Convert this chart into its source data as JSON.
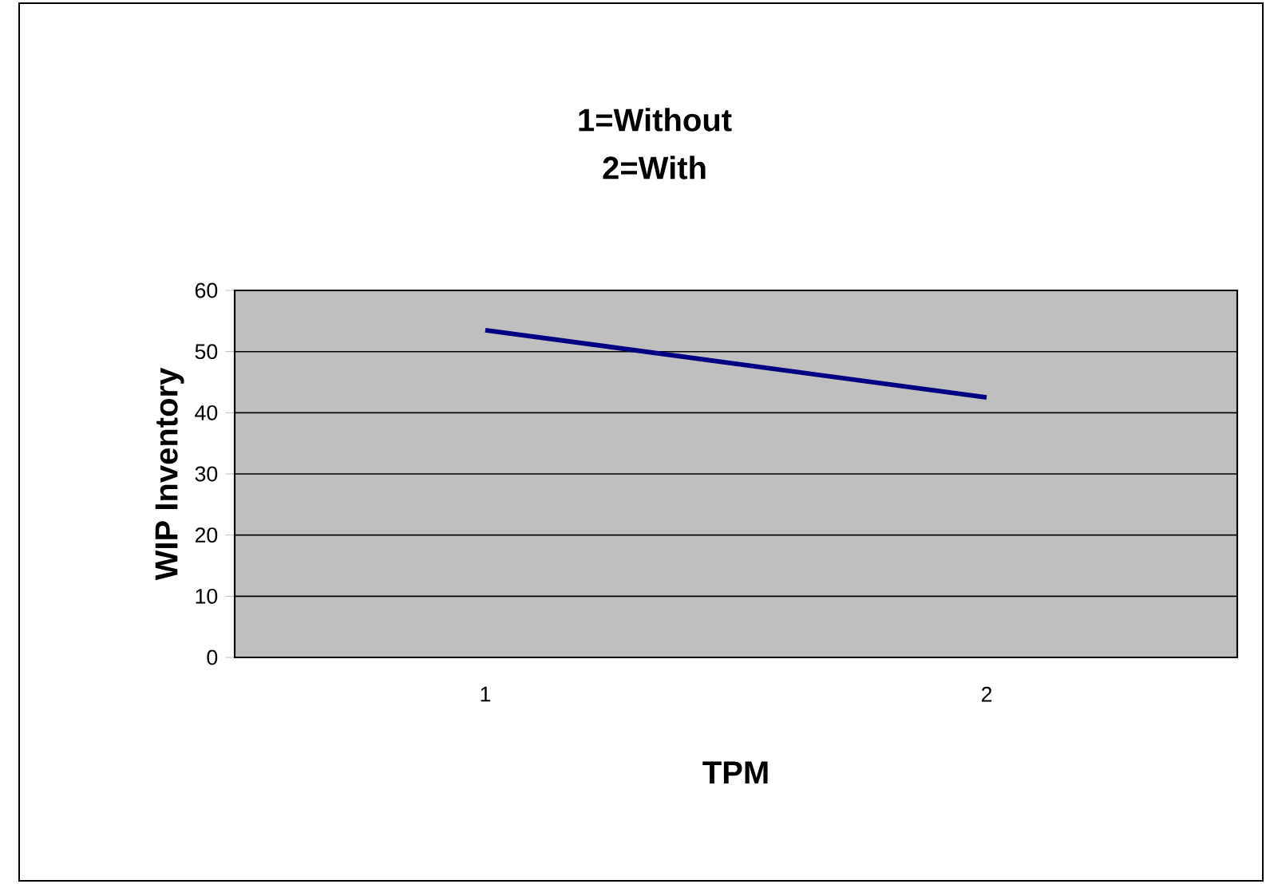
{
  "chart_data": {
    "type": "line",
    "title": "1=Without",
    "subtitle": "2=With",
    "xlabel": "TPM",
    "ylabel": "WIP Inventory",
    "categories": [
      "1",
      "2"
    ],
    "series": [
      {
        "color": "#000080",
        "values": [
          53.5,
          42.5
        ]
      }
    ],
    "ylim": [
      0,
      60
    ],
    "yticks": [
      0,
      10,
      20,
      30,
      40,
      50,
      60
    ],
    "grid": "y"
  }
}
